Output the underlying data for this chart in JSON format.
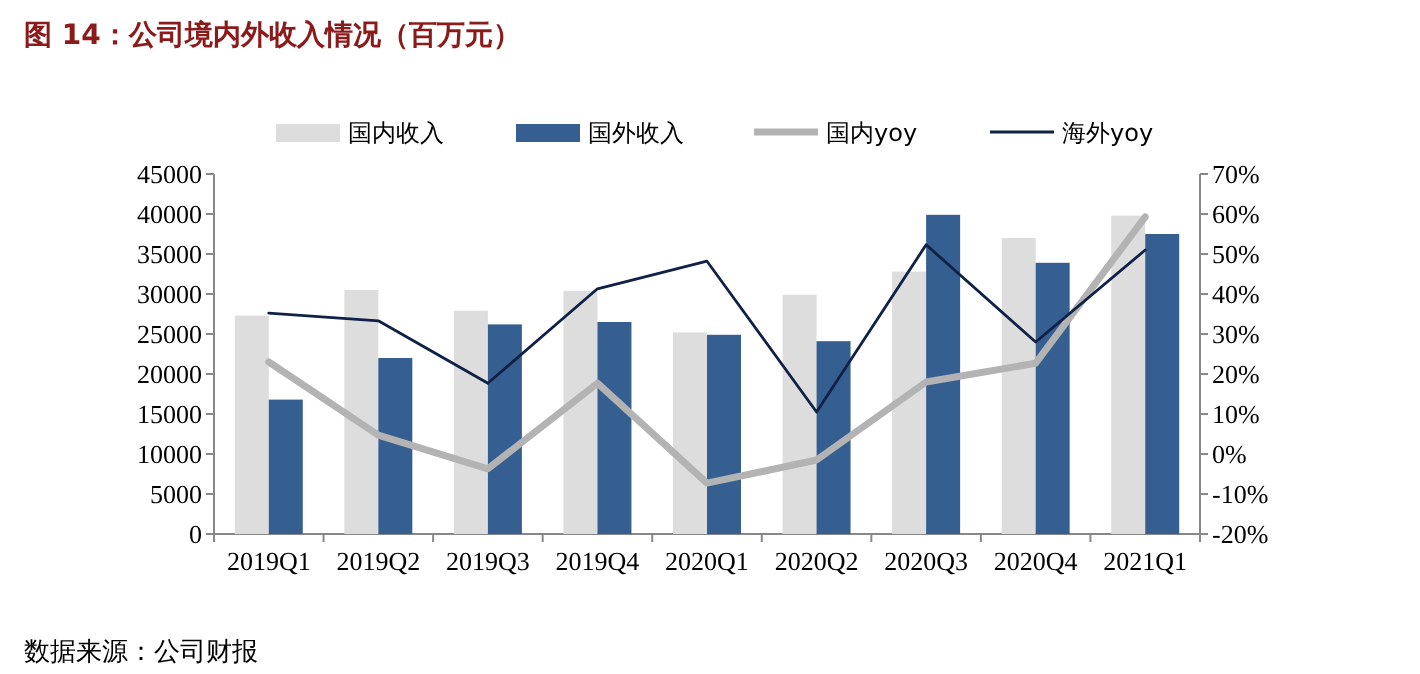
{
  "chart_data": {
    "type": "bar",
    "title": "图 14：公司境内外收入情况（百万元）",
    "annotations": [
      "数据来源：公司财报"
    ],
    "categories": [
      "2019Q1",
      "2019Q2",
      "2019Q3",
      "2019Q4",
      "2020Q1",
      "2020Q2",
      "2020Q3",
      "2020Q4",
      "2021Q1"
    ],
    "series": [
      {
        "name": "国内收入",
        "color": "#dddddd",
        "values": [
          27300,
          30500,
          27900,
          30400,
          25200,
          29900,
          32800,
          37000,
          39800
        ]
      },
      {
        "name": "国外收入",
        "color": "#365f91",
        "values": [
          16800,
          22000,
          26200,
          26500,
          24900,
          24100,
          39900,
          33900,
          37500
        ]
      },
      {
        "name": "国内yoy",
        "type": "line",
        "axis": "y2",
        "color": "#b3b3b3",
        "values": [
          23,
          4.7,
          -3.7,
          17.7,
          -7.3,
          -1.5,
          18,
          22.7,
          59.3
        ]
      },
      {
        "name": "海外yoy",
        "type": "line",
        "axis": "y2",
        "color": "#0f2147",
        "values": [
          35.2,
          33.3,
          17.7,
          41.3,
          48.2,
          10.5,
          52.3,
          28,
          51
        ]
      }
    ],
    "ylim": [
      0,
      45000
    ],
    "yticks": [
      0,
      5000,
      10000,
      15000,
      20000,
      25000,
      30000,
      35000,
      40000,
      45000
    ],
    "y2lim": [
      -20,
      70
    ],
    "y2ticks": [
      {
        "value": -20,
        "label": "-20%"
      },
      {
        "value": -10,
        "label": "-10%"
      },
      {
        "value": 0,
        "label": "0%"
      },
      {
        "value": 10,
        "label": "10%"
      },
      {
        "value": 20,
        "label": "20%"
      },
      {
        "value": 30,
        "label": "30%"
      },
      {
        "value": 40,
        "label": "40%"
      },
      {
        "value": 50,
        "label": "50%"
      },
      {
        "value": 60,
        "label": "60%"
      },
      {
        "value": 70,
        "label": "70%"
      }
    ],
    "grid": false,
    "legend": "top"
  }
}
